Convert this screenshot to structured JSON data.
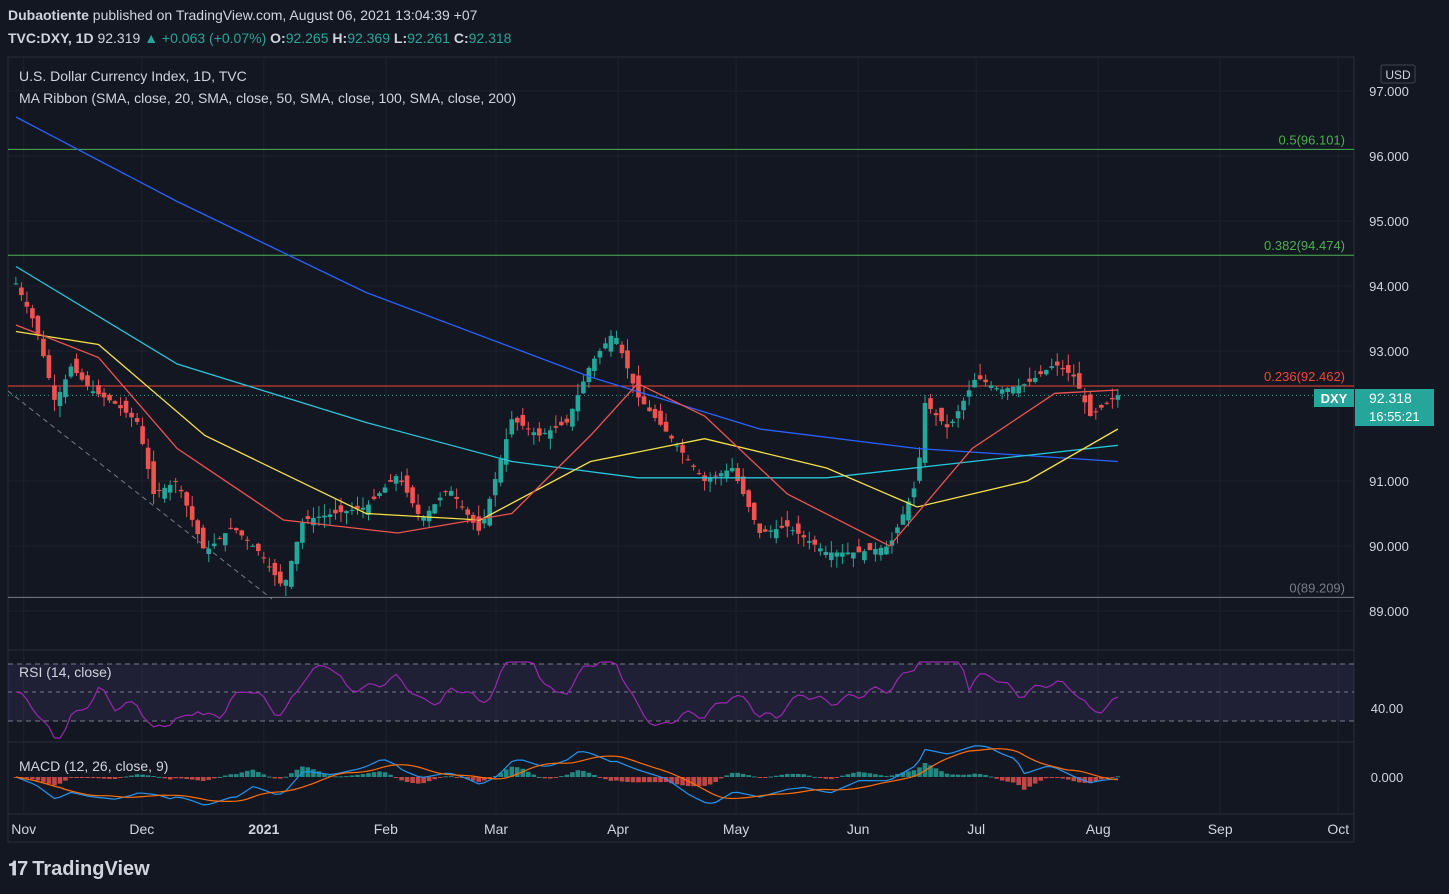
{
  "header": {
    "author": "Dubaotiente",
    "published": "published on TradingView.com, August 06, 2021 13:04:39 +07",
    "symbol_tf": "TVC:DXY, 1D",
    "price": "92.319",
    "change": "▲ +0.063 (+0.07%)",
    "o_label": "O:",
    "o": "92.265",
    "h_label": "H:",
    "h": "92.369",
    "l_label": "L:",
    "l": "92.261",
    "c_label": "C:",
    "c": "92.318"
  },
  "legend": {
    "title": "U.S. Dollar Currency Index, 1D, TVC",
    "ma": "MA Ribbon (SMA, close, 20, SMA, close, 50, SMA, close, 100, SMA, close, 200)",
    "rsi": "RSI (14, close)",
    "macd": "MACD (12, 26, close, 9)"
  },
  "price_axis": {
    "currency": "USD",
    "ticks": [
      "97.000",
      "96.000",
      "95.000",
      "94.000",
      "93.000",
      "91.000",
      "90.000",
      "89.000"
    ],
    "tick_values": [
      97,
      96,
      95,
      94,
      93,
      91,
      90,
      89
    ],
    "last_label": "DXY",
    "last_value": "92.318",
    "countdown": "16:55:21"
  },
  "rsi_axis": {
    "tick": "40.00"
  },
  "macd_axis": {
    "tick": "0.000"
  },
  "time_axis": [
    "Nov",
    "Dec",
    "2021",
    "Feb",
    "Mar",
    "Apr",
    "May",
    "Jun",
    "Jul",
    "Aug",
    "Sep",
    "Oct"
  ],
  "brand": "TradingView",
  "colors": {
    "up": "#26a69a",
    "down": "#ef5350",
    "sma20": "#ef5350",
    "sma50": "#f5e142",
    "sma100": "#26c6da",
    "sma200": "#2962ff",
    "fib_green": "#4caf50",
    "fib_red": "#f44336",
    "fib_gray": "#787b86",
    "rsi": "#9c27b0",
    "macd": "#2196f3",
    "signal": "#ff6d00"
  },
  "chart_data": {
    "type": "candlestick",
    "title": "U.S. Dollar Currency Index, 1D, TVC",
    "ylim": [
      88.6,
      97.4
    ],
    "fib_levels": [
      {
        "label": "0.5(96.101)",
        "value": 96.101
      },
      {
        "label": "0.382(94.474)",
        "value": 94.474
      },
      {
        "label": "0.236(92.462)",
        "value": 92.462
      },
      {
        "label": "0(89.209)",
        "value": 89.209
      }
    ],
    "close_path": [
      [
        "2020-10-30",
        94.04
      ],
      [
        "2020-11-04",
        93.4
      ],
      [
        "2020-11-09",
        92.2
      ],
      [
        "2020-11-13",
        92.76
      ],
      [
        "2020-11-18",
        92.4
      ],
      [
        "2020-11-24",
        92.2
      ],
      [
        "2020-11-30",
        91.9
      ],
      [
        "2020-12-04",
        90.8
      ],
      [
        "2020-12-10",
        91.0
      ],
      [
        "2020-12-17",
        89.9
      ],
      [
        "2020-12-24",
        90.3
      ],
      [
        "2020-12-31",
        89.9
      ],
      [
        "2021-01-06",
        89.35
      ],
      [
        "2021-01-11",
        90.4
      ],
      [
        "2021-01-19",
        90.5
      ],
      [
        "2021-01-27",
        90.6
      ],
      [
        "2021-02-04",
        91.1
      ],
      [
        "2021-02-10",
        90.4
      ],
      [
        "2021-02-17",
        90.9
      ],
      [
        "2021-02-25",
        90.2
      ],
      [
        "2021-03-05",
        91.95
      ],
      [
        "2021-03-12",
        91.7
      ],
      [
        "2021-03-19",
        91.9
      ],
      [
        "2021-03-25",
        92.8
      ],
      [
        "2021-03-31",
        93.3
      ],
      [
        "2021-04-06",
        92.3
      ],
      [
        "2021-04-14",
        91.7
      ],
      [
        "2021-04-23",
        91.0
      ],
      [
        "2021-04-30",
        91.2
      ],
      [
        "2021-05-07",
        90.2
      ],
      [
        "2021-05-14",
        90.3
      ],
      [
        "2021-05-24",
        89.9
      ],
      [
        "2021-06-01",
        89.9
      ],
      [
        "2021-06-09",
        90.0
      ],
      [
        "2021-06-16",
        91.0
      ],
      [
        "2021-06-18",
        92.2
      ],
      [
        "2021-06-24",
        91.8
      ],
      [
        "2021-07-01",
        92.6
      ],
      [
        "2021-07-07",
        92.4
      ],
      [
        "2021-07-14",
        92.5
      ],
      [
        "2021-07-21",
        92.8
      ],
      [
        "2021-07-26",
        92.6
      ],
      [
        "2021-07-30",
        92.0
      ],
      [
        "2021-08-06",
        92.32
      ]
    ],
    "sma20": [
      [
        "2020-10-30",
        93.4
      ],
      [
        "2020-11-20",
        92.9
      ],
      [
        "2020-12-10",
        91.5
      ],
      [
        "2021-01-06",
        90.4
      ],
      [
        "2021-02-04",
        90.2
      ],
      [
        "2021-03-05",
        90.5
      ],
      [
        "2021-03-25",
        91.7
      ],
      [
        "2021-04-06",
        92.5
      ],
      [
        "2021-04-23",
        92.0
      ],
      [
        "2021-05-14",
        90.8
      ],
      [
        "2021-06-09",
        90.0
      ],
      [
        "2021-06-30",
        91.5
      ],
      [
        "2021-07-21",
        92.35
      ],
      [
        "2021-08-06",
        92.4
      ]
    ],
    "sma50": [
      [
        "2020-10-30",
        93.3
      ],
      [
        "2020-11-20",
        93.1
      ],
      [
        "2020-12-17",
        91.7
      ],
      [
        "2021-01-27",
        90.5
      ],
      [
        "2021-02-25",
        90.4
      ],
      [
        "2021-03-25",
        91.3
      ],
      [
        "2021-04-23",
        91.65
      ],
      [
        "2021-05-24",
        91.2
      ],
      [
        "2021-06-16",
        90.6
      ],
      [
        "2021-07-14",
        91.0
      ],
      [
        "2021-08-06",
        91.8
      ]
    ],
    "sma100": [
      [
        "2020-10-30",
        94.3
      ],
      [
        "2020-12-10",
        92.8
      ],
      [
        "2021-01-27",
        91.9
      ],
      [
        "2021-03-05",
        91.3
      ],
      [
        "2021-04-06",
        91.05
      ],
      [
        "2021-05-24",
        91.05
      ],
      [
        "2021-06-30",
        91.3
      ],
      [
        "2021-08-06",
        91.55
      ]
    ],
    "sma200": [
      [
        "2020-10-30",
        96.6
      ],
      [
        "2020-12-10",
        95.3
      ],
      [
        "2021-01-27",
        93.9
      ],
      [
        "2021-03-25",
        92.6
      ],
      [
        "2021-05-07",
        91.8
      ],
      [
        "2021-06-16",
        91.5
      ],
      [
        "2021-08-06",
        91.3
      ]
    ]
  }
}
